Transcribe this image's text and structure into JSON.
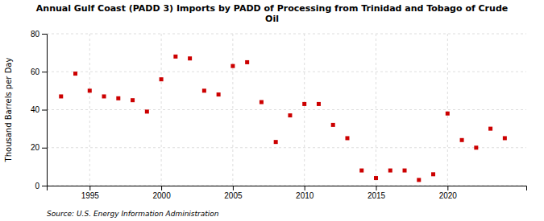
{
  "chart_data": {
    "type": "scatter",
    "title": "Annual Gulf Coast (PADD 3) Imports by PADD of Processing from Trinidad and Tobago of Crude\nOil",
    "y_label": "Thousand Barrels per Day",
    "source": "Source: U.S. Energy Information Administration",
    "x": [
      1993,
      1994,
      1995,
      1996,
      1997,
      1998,
      1999,
      2000,
      2001,
      2002,
      2003,
      2004,
      2005,
      2006,
      2007,
      2008,
      2009,
      2010,
      2011,
      2012,
      2013,
      2014,
      2015,
      2016,
      2017,
      2018,
      2019,
      2020,
      2021,
      2022,
      2023,
      2024
    ],
    "values": [
      47,
      59,
      50,
      47,
      46,
      45,
      39,
      56,
      68,
      67,
      50,
      48,
      63,
      65,
      44,
      23,
      37,
      43,
      43,
      32,
      25,
      8,
      4,
      8,
      8,
      3,
      6,
      38,
      24,
      20,
      30,
      25
    ],
    "color": "#cc0000",
    "marker": "square",
    "xlim": [
      1992,
      2025.5
    ],
    "ylim": [
      0,
      80
    ],
    "xticks": [
      1995,
      2000,
      2005,
      2010,
      2015,
      2020
    ],
    "yticks": [
      0,
      20,
      40,
      60,
      80
    ],
    "grid": true
  }
}
